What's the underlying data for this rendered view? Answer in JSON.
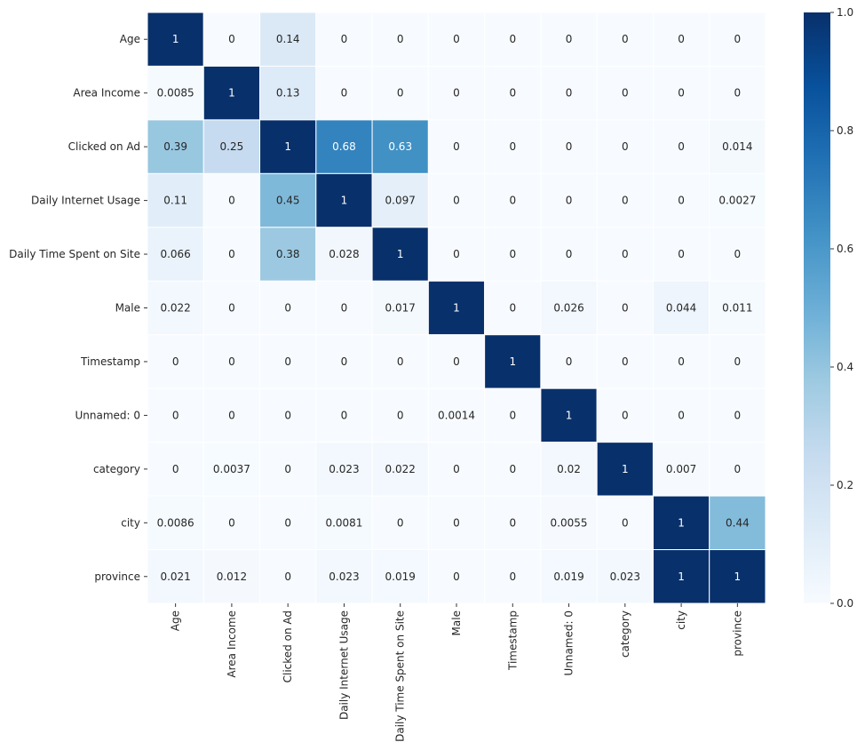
{
  "chart_data": {
    "type": "heatmap",
    "title": "",
    "xlabel": "",
    "ylabel": "",
    "colormap": "Blues",
    "colormap_stops": [
      "#f7fbff",
      "#deebf7",
      "#c6dbef",
      "#9ecae1",
      "#6baed6",
      "#4292c6",
      "#2171b5",
      "#08519c",
      "#08306b"
    ],
    "vmin": 0,
    "vmax": 1,
    "colorbar": {
      "ticks": [
        0.0,
        0.2,
        0.4,
        0.6,
        0.8,
        1.0
      ],
      "tick_labels": [
        "0.0",
        "0.2",
        "0.4",
        "0.6",
        "0.8",
        "1.0"
      ],
      "placement": "right"
    },
    "row_labels": [
      "Age",
      "Area Income",
      "Clicked on Ad",
      "Daily Internet Usage",
      "Daily Time Spent on Site",
      "Male",
      "Timestamp",
      "Unnamed: 0",
      "category",
      "city",
      "province"
    ],
    "col_labels": [
      "Age",
      "Area Income",
      "Clicked on Ad",
      "Daily Internet Usage",
      "Daily Time Spent on Site",
      "Male",
      "Timestamp",
      "Unnamed: 0",
      "category",
      "city",
      "province"
    ],
    "values": [
      [
        1,
        0,
        0.14,
        0,
        0,
        0,
        0,
        0,
        0,
        0,
        0
      ],
      [
        0.0085,
        1,
        0.13,
        0,
        0,
        0,
        0,
        0,
        0,
        0,
        0
      ],
      [
        0.39,
        0.25,
        1,
        0.68,
        0.63,
        0,
        0,
        0,
        0,
        0,
        0.014
      ],
      [
        0.11,
        0,
        0.45,
        1,
        0.097,
        0,
        0,
        0,
        0,
        0,
        0.0027
      ],
      [
        0.066,
        0,
        0.38,
        0.028,
        1,
        0,
        0,
        0,
        0,
        0,
        0
      ],
      [
        0.022,
        0,
        0,
        0,
        0.017,
        1,
        0,
        0.026,
        0,
        0.044,
        0.011
      ],
      [
        0,
        0,
        0,
        0,
        0,
        0,
        1,
        0,
        0,
        0,
        0
      ],
      [
        0,
        0,
        0,
        0,
        0,
        0.0014,
        0,
        1,
        0,
        0,
        0
      ],
      [
        0,
        0.0037,
        0,
        0.023,
        0.022,
        0,
        0,
        0.02,
        1,
        0.007,
        0
      ],
      [
        0.0086,
        0,
        0,
        0.0081,
        0,
        0,
        0,
        0.0055,
        0,
        1,
        0.44
      ],
      [
        0.021,
        0.012,
        0,
        0.023,
        0.019,
        0,
        0,
        0.019,
        0.023,
        1,
        1
      ]
    ],
    "annotations": true
  }
}
